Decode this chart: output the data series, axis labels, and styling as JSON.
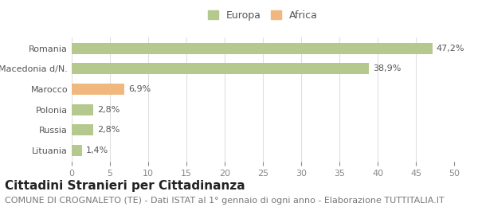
{
  "categories": [
    "Romania",
    "Macedonia d/N.",
    "Marocco",
    "Polonia",
    "Russia",
    "Lituania"
  ],
  "values": [
    47.2,
    38.9,
    6.9,
    2.8,
    2.8,
    1.4
  ],
  "labels": [
    "47,2%",
    "38,9%",
    "6,9%",
    "2,8%",
    "2,8%",
    "1,4%"
  ],
  "colors": [
    "#b5c98e",
    "#b5c98e",
    "#f0b77e",
    "#b5c98e",
    "#b5c98e",
    "#b5c98e"
  ],
  "legend_labels": [
    "Europa",
    "Africa"
  ],
  "legend_colors": [
    "#b5c98e",
    "#f0b77e"
  ],
  "xlim": [
    0,
    50
  ],
  "xticks": [
    0,
    5,
    10,
    15,
    20,
    25,
    30,
    35,
    40,
    45,
    50
  ],
  "title": "Cittadini Stranieri per Cittadinanza",
  "subtitle": "COMUNE DI CROGNALETO (TE) - Dati ISTAT al 1° gennaio di ogni anno - Elaborazione TUTTITALIA.IT",
  "bg_color": "#ffffff",
  "title_fontsize": 11,
  "subtitle_fontsize": 8,
  "label_fontsize": 8,
  "tick_fontsize": 8,
  "legend_fontsize": 9
}
